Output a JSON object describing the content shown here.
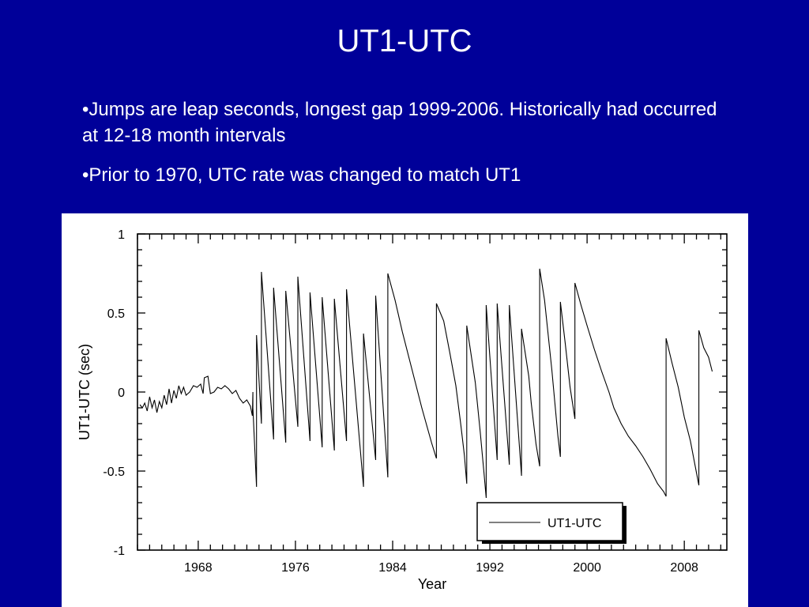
{
  "slide": {
    "title": "UT1-UTC",
    "bullets": [
      "•Jumps are leap seconds, longest gap 1999-2006. Historically had occurred at 12-18 month intervals",
      "•Prior to 1970, UTC rate was changed to match UT1"
    ]
  },
  "colors": {
    "background": "#000099",
    "text": "#ffffff",
    "panel": "#ffffff",
    "line": "#000000"
  },
  "chart_data": {
    "type": "line",
    "title": "",
    "xlabel": "Year",
    "ylabel": "UT1-UTC (sec)",
    "xlim": [
      1963,
      2011.5
    ],
    "ylim": [
      -1,
      1
    ],
    "xticks": [
      1968,
      1976,
      1984,
      1992,
      2000,
      2008
    ],
    "xtick_labels": [
      "1968",
      "1976",
      "1984",
      "1992",
      "2000",
      "2008"
    ],
    "yticks": [
      -1,
      -0.5,
      0,
      0.5,
      1
    ],
    "ytick_labels": [
      "-1",
      "-0.5",
      "0",
      "0.5",
      "1"
    ],
    "legend": {
      "position": "bottom-right",
      "entries": [
        "UT1-UTC"
      ]
    },
    "grid": false,
    "series": [
      {
        "name": "UT1-UTC",
        "points": [
          [
            1963.2,
            -0.08
          ],
          [
            1963.4,
            -0.1
          ],
          [
            1963.6,
            -0.07
          ],
          [
            1963.8,
            -0.12
          ],
          [
            1964.0,
            -0.03
          ],
          [
            1964.2,
            -0.1
          ],
          [
            1964.4,
            -0.05
          ],
          [
            1964.6,
            -0.13
          ],
          [
            1964.8,
            -0.06
          ],
          [
            1965.0,
            -0.1
          ],
          [
            1965.2,
            -0.02
          ],
          [
            1965.4,
            -0.08
          ],
          [
            1965.6,
            0.02
          ],
          [
            1965.8,
            -0.07
          ],
          [
            1966.0,
            0.01
          ],
          [
            1966.2,
            -0.04
          ],
          [
            1966.4,
            0.04
          ],
          [
            1966.6,
            -0.01
          ],
          [
            1966.8,
            0.03
          ],
          [
            1967.0,
            -0.02
          ],
          [
            1967.3,
            0.0
          ],
          [
            1967.6,
            0.04
          ],
          [
            1967.9,
            0.03
          ],
          [
            1968.2,
            0.05
          ],
          [
            1968.4,
            -0.01
          ],
          [
            1968.5,
            0.09
          ],
          [
            1968.8,
            0.1
          ],
          [
            1969.0,
            -0.01
          ],
          [
            1969.3,
            0.0
          ],
          [
            1969.6,
            0.03
          ],
          [
            1969.9,
            0.02
          ],
          [
            1970.2,
            0.04
          ],
          [
            1970.5,
            0.02
          ],
          [
            1970.8,
            -0.01
          ],
          [
            1971.1,
            0.01
          ],
          [
            1971.4,
            -0.04
          ],
          [
            1971.7,
            -0.07
          ],
          [
            1972.0,
            -0.05
          ],
          [
            1972.3,
            -0.09
          ],
          [
            1972.45,
            -0.15
          ],
          [
            1972.5,
            0.0
          ],
          [
            1972.5,
            -0.1
          ],
          [
            1972.8,
            -0.6
          ],
          [
            1972.8,
            0.36
          ],
          [
            1973.2,
            -0.2
          ],
          [
            1973.2,
            0.76
          ],
          [
            1974.2,
            -0.3
          ],
          [
            1974.2,
            0.66
          ],
          [
            1975.2,
            -0.32
          ],
          [
            1975.2,
            0.64
          ],
          [
            1976.2,
            -0.22
          ],
          [
            1976.2,
            0.73
          ],
          [
            1977.2,
            -0.31
          ],
          [
            1977.2,
            0.63
          ],
          [
            1978.2,
            -0.35
          ],
          [
            1978.2,
            0.6
          ],
          [
            1979.2,
            -0.37
          ],
          [
            1979.2,
            0.59
          ],
          [
            1980.2,
            -0.31
          ],
          [
            1980.2,
            0.65
          ],
          [
            1981.6,
            -0.6
          ],
          [
            1981.6,
            0.37
          ],
          [
            1982.6,
            -0.43
          ],
          [
            1982.6,
            0.61
          ],
          [
            1983.6,
            -0.54
          ],
          [
            1983.6,
            0.75
          ],
          [
            1984.2,
            0.58
          ],
          [
            1984.8,
            0.38
          ],
          [
            1985.6,
            0.14
          ],
          [
            1986.4,
            -0.1
          ],
          [
            1987.2,
            -0.32
          ],
          [
            1987.6,
            -0.42
          ],
          [
            1987.6,
            0.56
          ],
          [
            1988.2,
            0.45
          ],
          [
            1988.7,
            0.25
          ],
          [
            1989.2,
            0.04
          ],
          [
            1989.6,
            -0.2
          ],
          [
            1989.9,
            -0.4
          ],
          [
            1990.1,
            -0.58
          ],
          [
            1990.1,
            0.42
          ],
          [
            1990.8,
            0.06
          ],
          [
            1991.2,
            -0.25
          ],
          [
            1991.5,
            -0.5
          ],
          [
            1991.7,
            -0.67
          ],
          [
            1991.7,
            0.55
          ],
          [
            1992.6,
            -0.43
          ],
          [
            1992.6,
            0.56
          ],
          [
            1993.6,
            -0.46
          ],
          [
            1993.6,
            0.55
          ],
          [
            1994.6,
            -0.53
          ],
          [
            1994.6,
            0.4
          ],
          [
            1995.2,
            0.1
          ],
          [
            1995.4,
            -0.07
          ],
          [
            1995.8,
            -0.33
          ],
          [
            1996.1,
            -0.47
          ],
          [
            1996.1,
            0.78
          ],
          [
            1996.5,
            0.58
          ],
          [
            1997.1,
            0.14
          ],
          [
            1997.6,
            -0.28
          ],
          [
            1997.8,
            -0.41
          ],
          [
            1997.8,
            0.57
          ],
          [
            1998.2,
            0.31
          ],
          [
            1998.6,
            0.03
          ],
          [
            1999.0,
            -0.17
          ],
          [
            1999.0,
            0.69
          ],
          [
            1999.5,
            0.55
          ],
          [
            2000.0,
            0.42
          ],
          [
            2000.6,
            0.27
          ],
          [
            2001.2,
            0.13
          ],
          [
            2001.8,
            0.0
          ],
          [
            2002.2,
            -0.1
          ],
          [
            2002.8,
            -0.2
          ],
          [
            2003.4,
            -0.28
          ],
          [
            2004.0,
            -0.34
          ],
          [
            2004.6,
            -0.41
          ],
          [
            2005.2,
            -0.49
          ],
          [
            2005.8,
            -0.58
          ],
          [
            2006.3,
            -0.63
          ],
          [
            2006.5,
            -0.66
          ],
          [
            2006.5,
            0.34
          ],
          [
            2007.0,
            0.18
          ],
          [
            2007.5,
            0.03
          ],
          [
            2008.0,
            -0.16
          ],
          [
            2008.5,
            -0.31
          ],
          [
            2008.9,
            -0.47
          ],
          [
            2009.2,
            -0.59
          ],
          [
            2009.2,
            0.39
          ],
          [
            2009.6,
            0.28
          ],
          [
            2010.0,
            0.22
          ],
          [
            2010.3,
            0.13
          ]
        ]
      }
    ]
  }
}
